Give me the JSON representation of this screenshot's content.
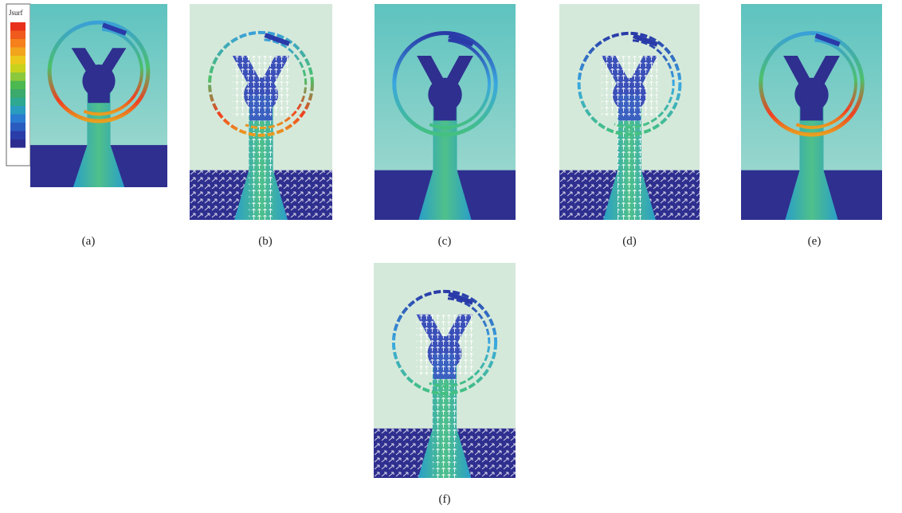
{
  "legend": {
    "title": "Jsurf"
  },
  "panels": [
    {
      "label": "(a)"
    },
    {
      "label": "(b)"
    },
    {
      "label": "(c)"
    },
    {
      "label": "(d)"
    },
    {
      "label": "(e)"
    },
    {
      "label": "(f)"
    }
  ]
}
